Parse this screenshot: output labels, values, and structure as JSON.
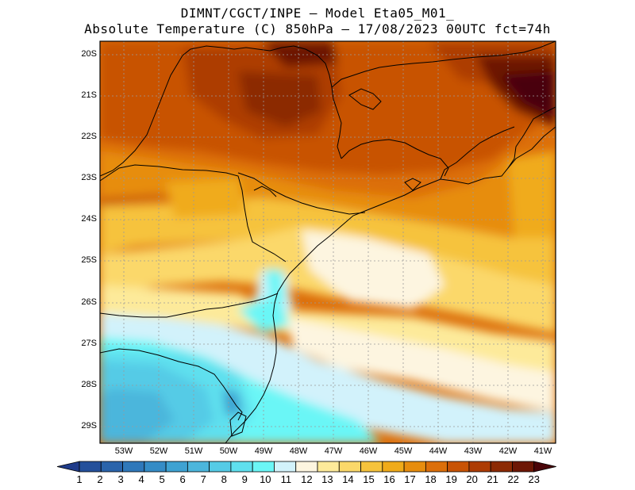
{
  "title": {
    "line1": "DIMNT/CGCT/INPE –  Model Eta05_M01_",
    "line2": "Absolute Temperature (C) 850hPa –  17/08/2023 00UTC fct=74h"
  },
  "lat_labels": [
    "20S",
    "21S",
    "22S",
    "23S",
    "24S",
    "25S",
    "26S",
    "27S",
    "28S",
    "29S"
  ],
  "lon_labels": [
    "53W",
    "52W",
    "51W",
    "50W",
    "49W",
    "48W",
    "47W",
    "46W",
    "45W",
    "44W",
    "43W",
    "42W",
    "41W"
  ],
  "colorbar": {
    "levels": [
      "1",
      "2",
      "3",
      "4",
      "5",
      "6",
      "7",
      "8",
      "9",
      "10",
      "11",
      "12",
      "13",
      "14",
      "15",
      "16",
      "17",
      "18",
      "19",
      "20",
      "21",
      "22",
      "23"
    ],
    "colors": [
      "#1f3b8a",
      "#24509b",
      "#2a64ab",
      "#2f78ba",
      "#358cc6",
      "#3ea2d2",
      "#4cb6dc",
      "#55cbe6",
      "#5fe0ee",
      "#6bf6f6",
      "#d2f2fb",
      "#fdf5e0",
      "#fdea9a",
      "#fbd86a",
      "#f6c33c",
      "#f0ab1a",
      "#e78d0e",
      "#dc6f0a",
      "#c85305",
      "#ad3c03",
      "#8c2a04",
      "#6d1706",
      "#4a0509"
    ]
  }
}
